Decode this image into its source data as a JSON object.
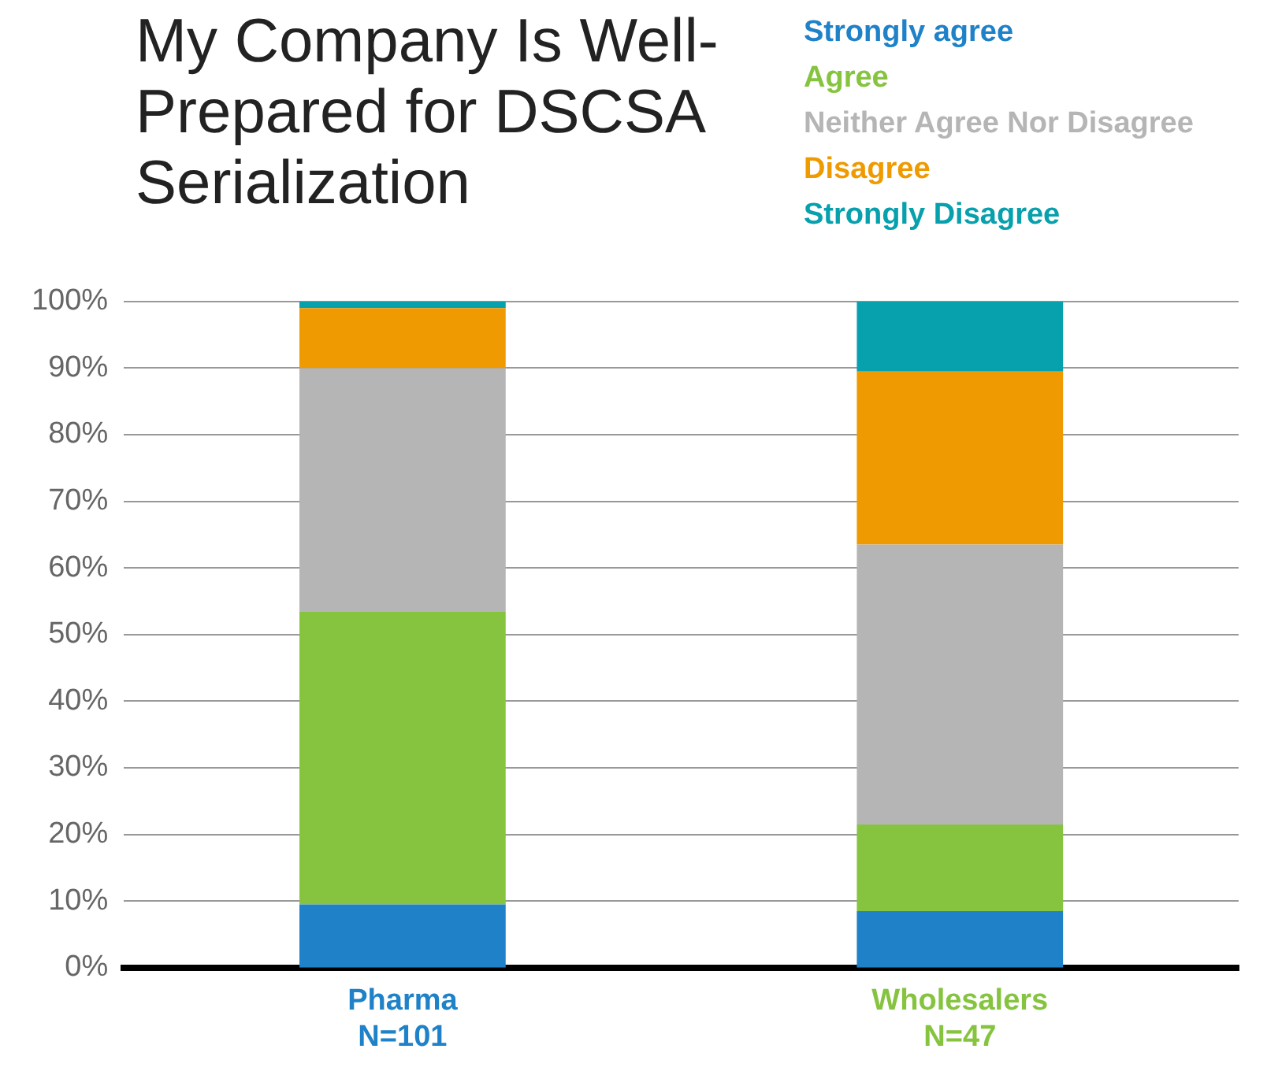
{
  "chart_data": {
    "type": "bar",
    "title": "My Company Is Well-Prepared for DSCSA Serialization",
    "categories": [
      "Pharma\nN=101",
      "Wholesalers\nN=47"
    ],
    "stacked": true,
    "legend": "top right",
    "grid": "y",
    "ylim": [
      0,
      100
    ],
    "yticks": [
      {
        "value": 0,
        "label": "0%"
      },
      {
        "value": 10,
        "label": "10%"
      },
      {
        "value": 20,
        "label": "20%"
      },
      {
        "value": 30,
        "label": "30%"
      },
      {
        "value": 40,
        "label": "40%"
      },
      {
        "value": 50,
        "label": "50%"
      },
      {
        "value": 60,
        "label": "60%"
      },
      {
        "value": 70,
        "label": "70%"
      },
      {
        "value": 80,
        "label": "80%"
      },
      {
        "value": 90,
        "label": "90%"
      },
      {
        "value": 100,
        "label": "100%"
      }
    ],
    "series": [
      {
        "name": "Strongly agree",
        "color": "#1f82c8",
        "values": [
          9.5,
          8.5
        ]
      },
      {
        "name": "Agree",
        "color": "#86c440",
        "values": [
          44,
          13
        ]
      },
      {
        "name": "Neither Agree Nor Disagree",
        "color": "#b5b5b5",
        "values": [
          36.5,
          42
        ]
      },
      {
        "name": "Disagree",
        "color": "#ee9a00",
        "values": [
          9,
          26
        ]
      },
      {
        "name": "Strongly Disagree",
        "color": "#07a0ad",
        "values": [
          1,
          10.5
        ]
      }
    ]
  }
}
